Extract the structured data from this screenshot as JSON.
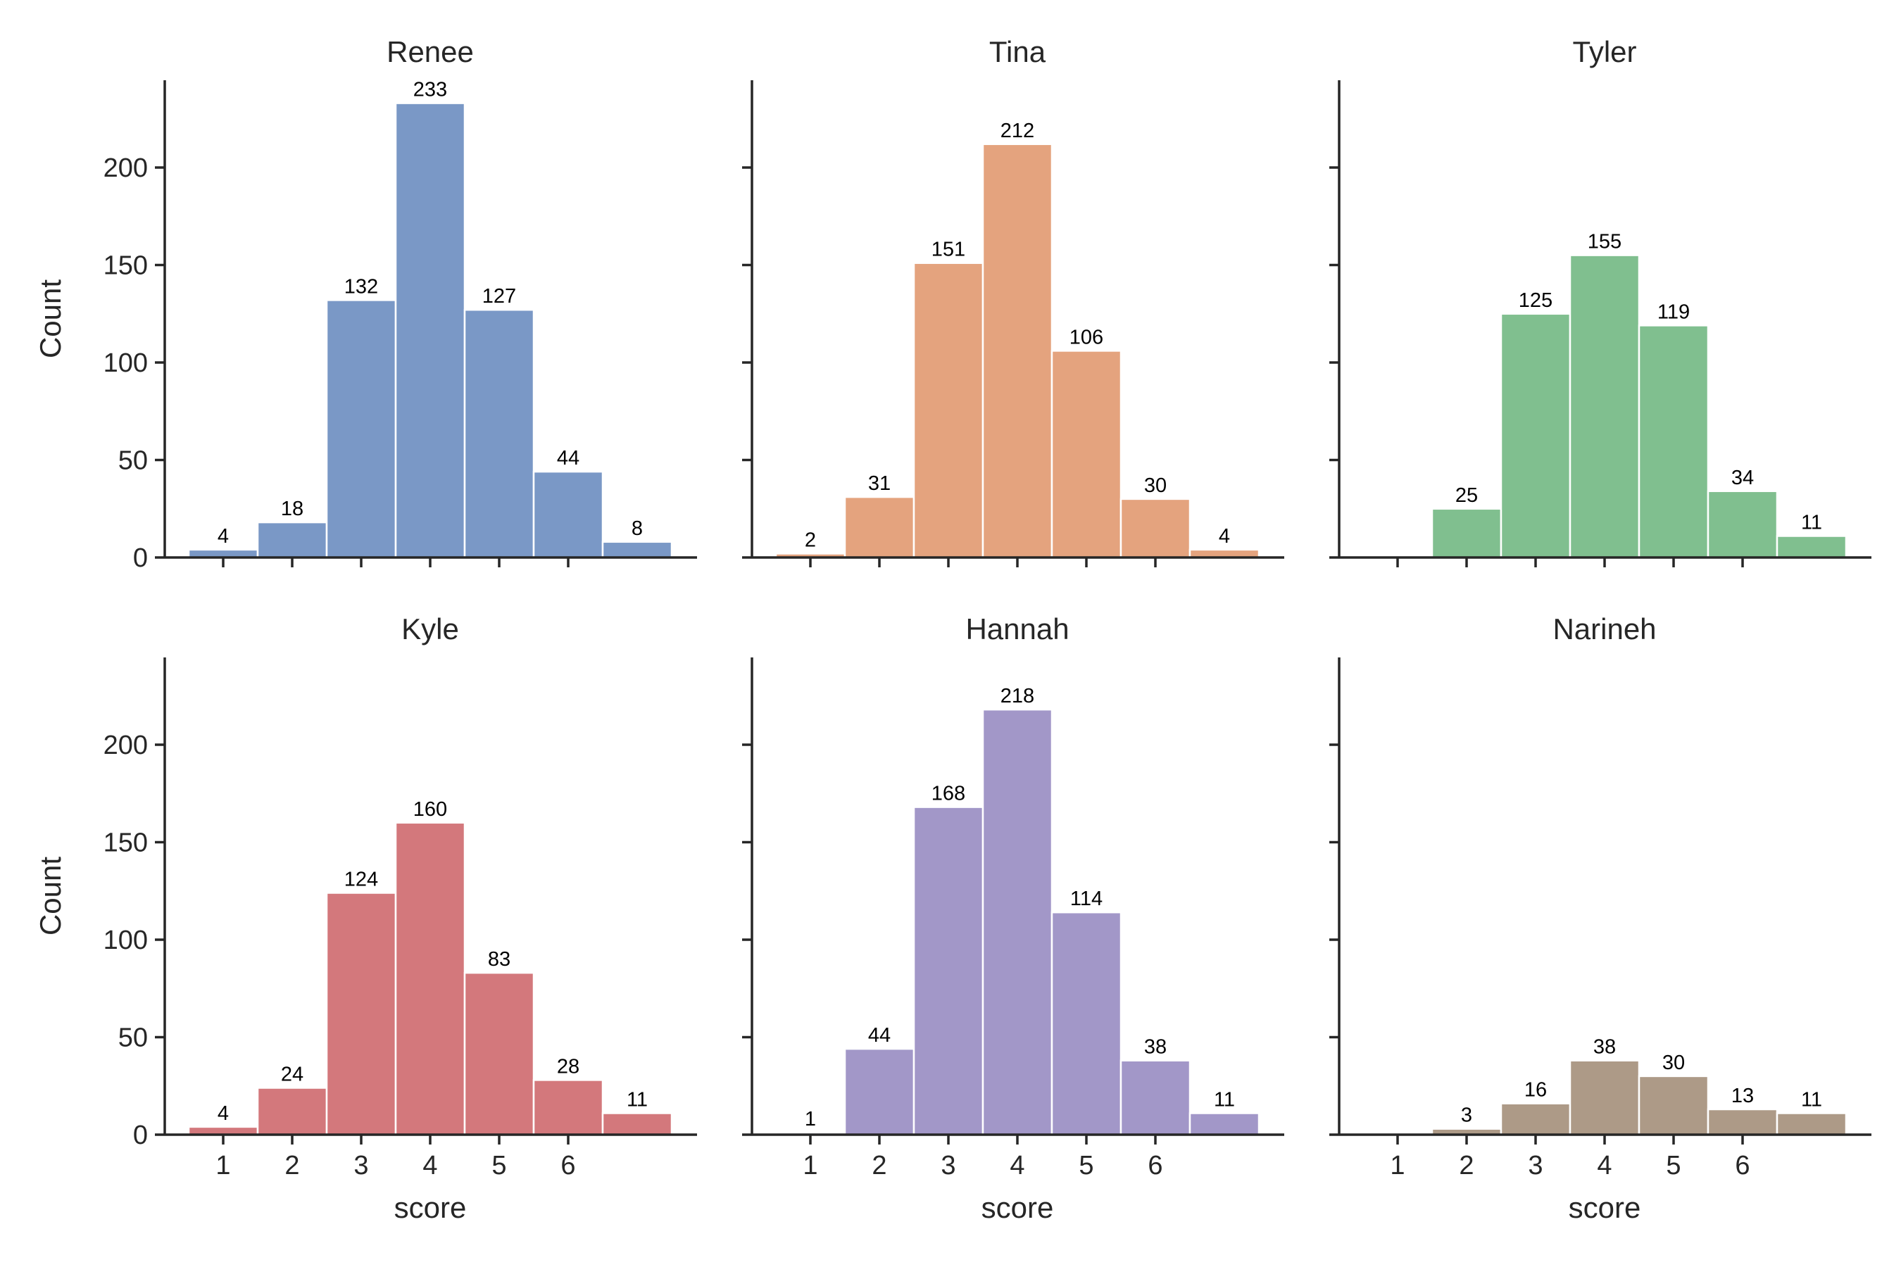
{
  "chart_data": [
    {
      "type": "bar",
      "title": "Renee",
      "xlabel": "",
      "ylabel": "Count",
      "xticks": [],
      "yticks": [
        "0",
        "50",
        "100",
        "150",
        "200"
      ],
      "x": [
        1,
        2,
        3,
        4,
        5,
        6,
        7
      ],
      "values": [
        4,
        18,
        132,
        233,
        127,
        44,
        8
      ],
      "labels": [
        "4",
        "18",
        "132",
        "233",
        "127",
        "44",
        "8"
      ],
      "color": "#7a98c6",
      "ylim": [
        0,
        245
      ]
    },
    {
      "type": "bar",
      "title": "Tina",
      "xlabel": "",
      "ylabel": "",
      "xticks": [],
      "yticks": [],
      "x": [
        1,
        2,
        3,
        4,
        5,
        6,
        7
      ],
      "values": [
        2,
        31,
        151,
        212,
        106,
        30,
        4
      ],
      "labels": [
        "2",
        "31",
        "151",
        "212",
        "106",
        "30",
        "4"
      ],
      "color": "#e4a37e",
      "ylim": [
        0,
        245
      ]
    },
    {
      "type": "bar",
      "title": "Tyler",
      "xlabel": "",
      "ylabel": "",
      "xticks": [],
      "yticks": [],
      "x": [
        1,
        2,
        3,
        4,
        5,
        6,
        7
      ],
      "values": [
        0,
        25,
        125,
        155,
        119,
        34,
        11
      ],
      "labels": [
        "",
        "25",
        "125",
        "155",
        "119",
        "34",
        "11"
      ],
      "color": "#80bf8f",
      "ylim": [
        0,
        245
      ]
    },
    {
      "type": "bar",
      "title": "Kyle",
      "xlabel": "score",
      "ylabel": "Count",
      "xticks": [
        "1",
        "2",
        "3",
        "4",
        "5",
        "6"
      ],
      "yticks": [
        "0",
        "50",
        "100",
        "150",
        "200"
      ],
      "x": [
        1,
        2,
        3,
        4,
        5,
        6,
        7
      ],
      "values": [
        4,
        24,
        124,
        160,
        83,
        28,
        11
      ],
      "labels": [
        "4",
        "24",
        "124",
        "160",
        "83",
        "28",
        "11"
      ],
      "color": "#d3787c",
      "ylim": [
        0,
        245
      ]
    },
    {
      "type": "bar",
      "title": "Hannah",
      "xlabel": "score",
      "ylabel": "",
      "xticks": [
        "1",
        "2",
        "3",
        "4",
        "5",
        "6"
      ],
      "yticks": [],
      "x": [
        1,
        2,
        3,
        4,
        5,
        6,
        7
      ],
      "values": [
        1,
        44,
        168,
        218,
        114,
        38,
        11
      ],
      "labels": [
        "1",
        "44",
        "168",
        "218",
        "114",
        "38",
        "11"
      ],
      "color": "#a297c8",
      "ylim": [
        0,
        245
      ]
    },
    {
      "type": "bar",
      "title": "Narineh",
      "xlabel": "score",
      "ylabel": "",
      "xticks": [
        "1",
        "2",
        "3",
        "4",
        "5",
        "6"
      ],
      "yticks": [],
      "x": [
        1,
        2,
        3,
        4,
        5,
        6,
        7
      ],
      "values": [
        0,
        3,
        16,
        38,
        30,
        13,
        11
      ],
      "labels": [
        "",
        "3",
        "16",
        "38",
        "30",
        "13",
        "11"
      ],
      "color": "#ad9a87",
      "ylim": [
        0,
        245
      ]
    }
  ]
}
